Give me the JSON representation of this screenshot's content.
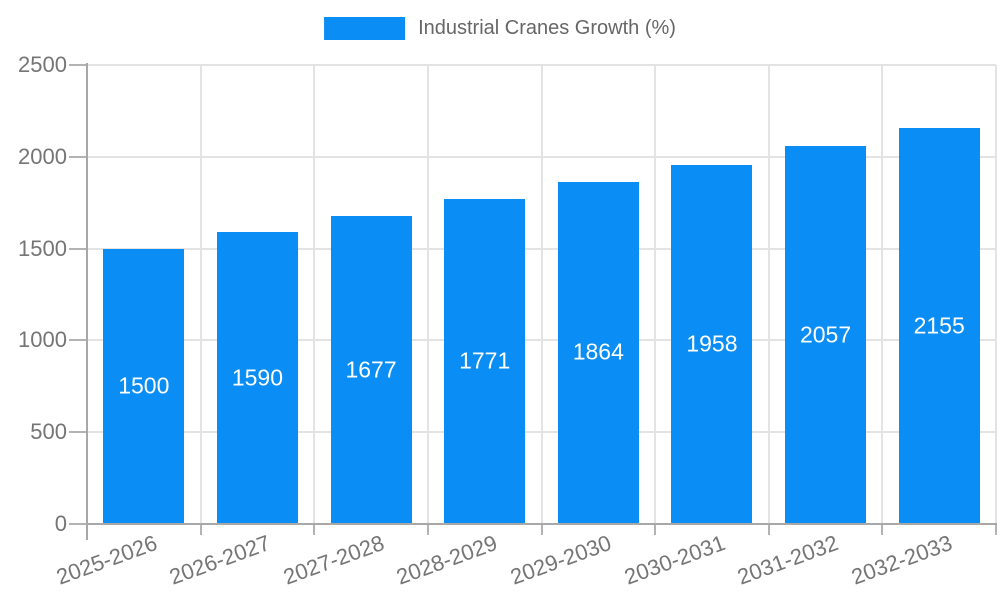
{
  "legend": {
    "label": "Industrial Cranes Growth (%)"
  },
  "chart_data": {
    "type": "bar",
    "title": "Industrial Cranes Growth (%)",
    "categories": [
      "2025-2026",
      "2026-2027",
      "2027-2028",
      "2028-2029",
      "2029-2030",
      "2030-2031",
      "2031-2032",
      "2032-2033"
    ],
    "values": [
      1500,
      1590,
      1677,
      1771,
      1864,
      1958,
      2057,
      2155
    ],
    "xlabel": "",
    "ylabel": "",
    "ylim": [
      0,
      2500
    ],
    "yticks": [
      0,
      500,
      1000,
      1500,
      2000,
      2500
    ],
    "grid": true,
    "legend_position": "top-center",
    "x_label_rotation_deg": -20,
    "bar_color": "#0a8df5",
    "value_label_color": "#ffffff",
    "grid_color": "#e3e3e3",
    "axis_color": "#a8a8a8",
    "tick_color": "#b3b3b3",
    "tick_label_color": "#757575",
    "legend_text_color": "#666666",
    "background_color": "#ffffff"
  }
}
